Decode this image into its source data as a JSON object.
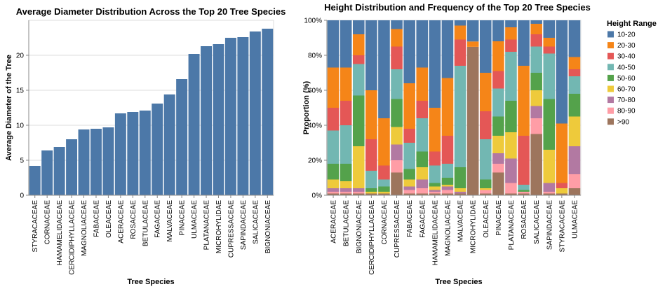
{
  "chart_data": [
    {
      "type": "bar",
      "title": "Average Diameter Distribution Across the Top 20 Tree Species",
      "xlabel": "Tree Species",
      "ylabel": "Average Diameter of the Tree",
      "ylim": [
        0,
        25
      ],
      "yticks": [
        0,
        5,
        10,
        15,
        20
      ],
      "color": "#4c78a8",
      "grid": true,
      "categories": [
        "STYRACACEAE",
        "CORNACEAE",
        "HAMAMELIDACEAE",
        "CERCIDIPHYLLACEAE",
        "MAGNOLIACEAE",
        "FABACEAE",
        "OLEACEAE",
        "ACERACEAE",
        "ROSACEAE",
        "BETULACEAE",
        "FAGACEAE",
        "MALVACEAE",
        "PINACEAE",
        "ULMACEAE",
        "PLATANACEAE",
        "MICROHYLIDAE",
        "CUPRESSACEAE",
        "SAPINDACEAE",
        "SALICACEAE",
        "BIGNONIACEAE"
      ],
      "values": [
        4.2,
        6.4,
        6.9,
        8.0,
        9.4,
        9.5,
        9.7,
        11.7,
        11.9,
        12.1,
        13.1,
        14.4,
        16.6,
        20.2,
        21.3,
        21.6,
        22.5,
        22.6,
        23.4,
        23.8
      ]
    },
    {
      "type": "bar",
      "stacked": "normalized",
      "title": "Height Distribution and Frequency of the Top 20 Tree Species",
      "xlabel": "Tree Species",
      "ylabel": "Proportion (%)",
      "ylim": [
        0,
        100
      ],
      "yticks": [
        "0%",
        "20%",
        "40%",
        "60%",
        "80%",
        "100%"
      ],
      "grid": true,
      "legend": {
        "title": "Height Range",
        "placement": "right"
      },
      "categories": [
        "ACERACEAE",
        "BETULACEAE",
        "BIGNONIACEAE",
        "CERCIDIPHYLLACEAE",
        "CORNACEAE",
        "CUPRESSACEAE",
        "FABACEAE",
        "FAGACEAE",
        "HAMAMELIDACEAE",
        "MAGNOLIACEAE",
        "MALVACEAE",
        "MICROHYLIDAE",
        "OLEACEAE",
        "PINACEAE",
        "PLATANACEAE",
        "ROSACEAE",
        "SALICACEAE",
        "SAPINDACEAE",
        "STYRACACEAE",
        "ULMACEAE"
      ],
      "series": [
        {
          "name": ">90",
          "color": "#9d755d",
          "values": [
            1,
            1,
            1,
            1,
            1,
            13,
            1,
            1,
            1,
            1,
            1,
            84,
            1,
            13,
            1,
            1,
            35,
            1,
            1,
            4
          ]
        },
        {
          "name": "80-90",
          "color": "#ff9da6",
          "values": [
            1,
            1,
            1,
            0,
            0,
            7,
            2,
            3,
            1,
            2,
            0,
            0,
            2,
            5,
            6,
            1,
            9,
            1,
            0,
            8
          ]
        },
        {
          "name": "70-80",
          "color": "#b279a2",
          "values": [
            2,
            2,
            2,
            0,
            0,
            9,
            2,
            5,
            1,
            2,
            1,
            0,
            0,
            6,
            14,
            0,
            7,
            5,
            0,
            16
          ]
        },
        {
          "name": "60-70",
          "color": "#eeca3b",
          "values": [
            5,
            4,
            24,
            1,
            1,
            10,
            4,
            7,
            2,
            1,
            2,
            0,
            1,
            10,
            15,
            0,
            9,
            19,
            3,
            17
          ]
        },
        {
          "name": "50-60",
          "color": "#54a24b",
          "values": [
            9,
            10,
            29,
            2,
            3,
            16,
            6,
            9,
            2,
            4,
            12,
            0,
            5,
            11,
            18,
            1,
            10,
            29,
            0,
            13
          ]
        },
        {
          "name": "40-50",
          "color": "#72b7b2",
          "values": [
            19,
            22,
            18,
            10,
            4,
            17,
            15,
            19,
            10,
            8,
            58,
            0,
            23,
            16,
            28,
            3,
            15,
            26,
            0,
            10
          ]
        },
        {
          "name": "30-40",
          "color": "#e45756",
          "values": [
            13,
            14,
            5,
            18,
            8,
            13,
            8,
            10,
            8,
            16,
            15,
            0,
            16,
            10,
            7,
            28,
            7,
            4,
            3,
            4
          ]
        },
        {
          "name": "20-30",
          "color": "#f58518",
          "values": [
            23,
            19,
            12,
            28,
            27,
            10,
            26,
            19,
            25,
            33,
            8,
            3,
            22,
            17,
            7,
            40,
            6,
            5,
            34,
            7
          ]
        },
        {
          "name": "10-20",
          "color": "#4c78a8",
          "values": [
            27,
            27,
            8,
            40,
            56,
            5,
            36,
            27,
            50,
            33,
            3,
            12,
            30,
            12,
            4,
            26,
            2,
            10,
            59,
            21
          ]
        }
      ]
    }
  ]
}
